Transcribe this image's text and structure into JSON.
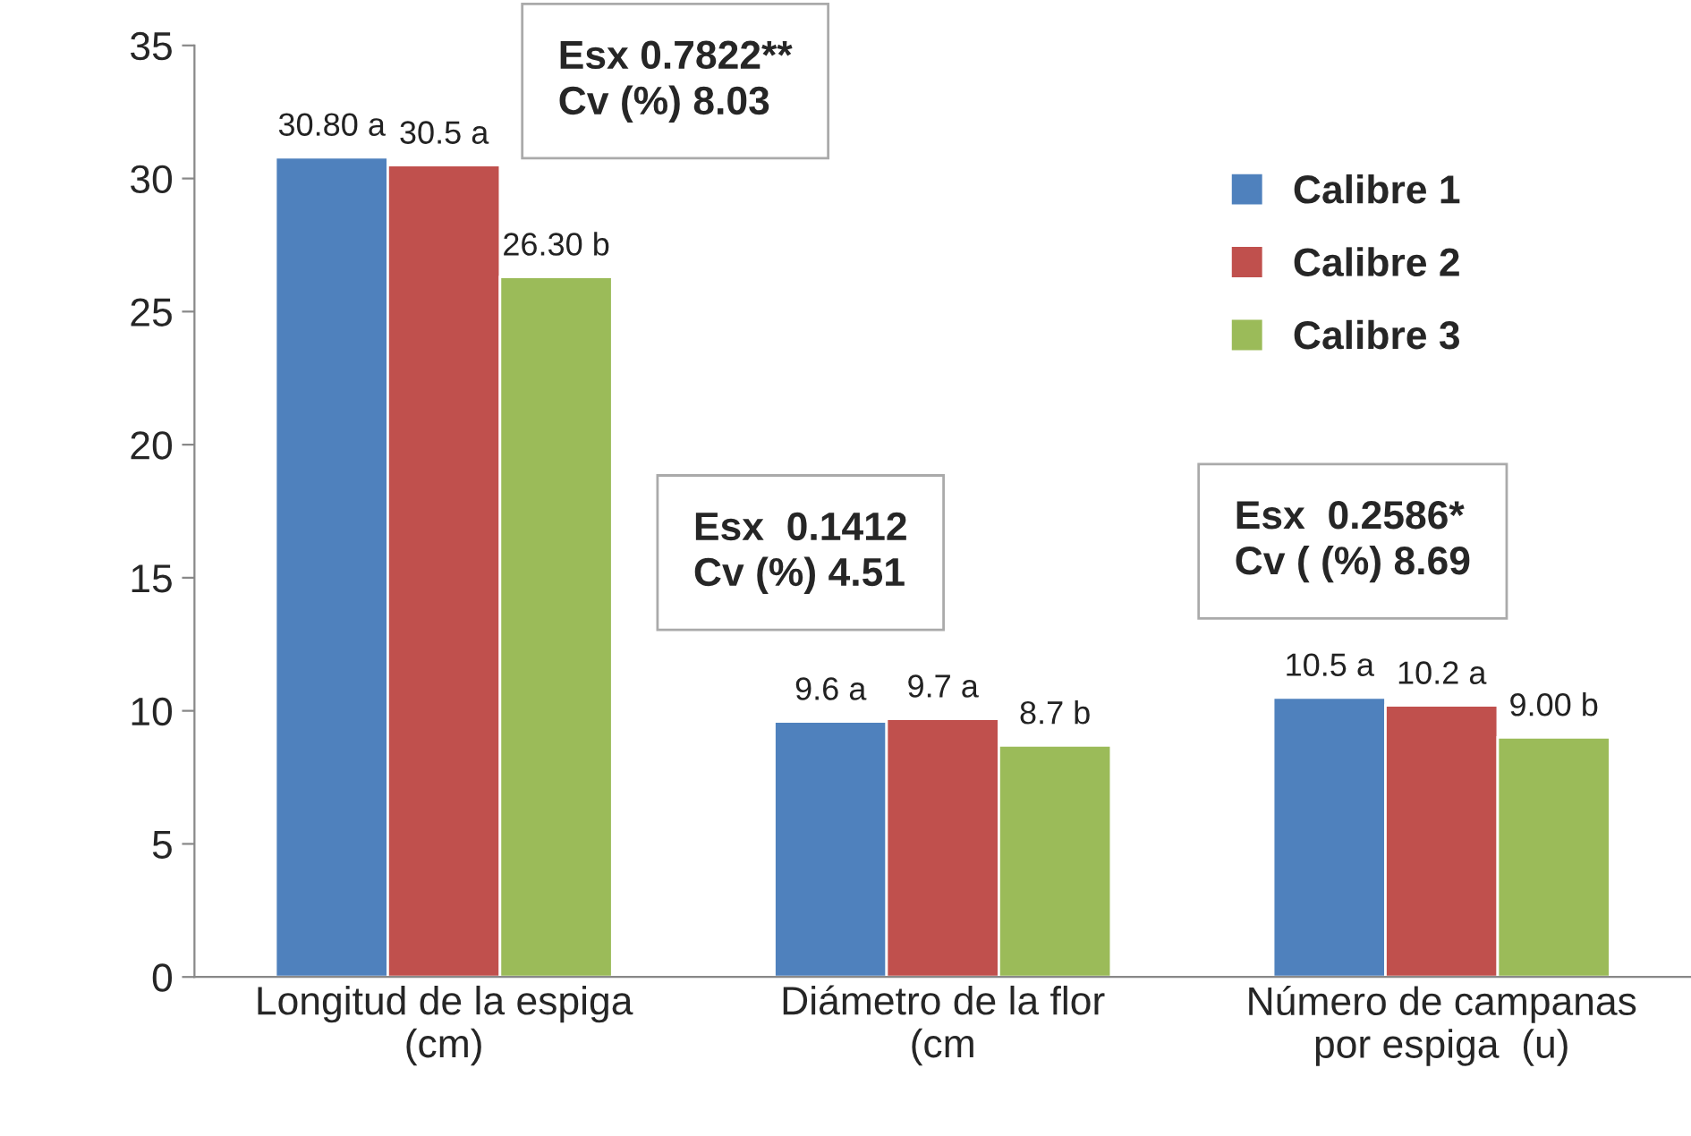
{
  "chart_data": {
    "type": "bar",
    "categories": [
      "Longitud de la espiga\n(cm)",
      "Diámetro de la flor\n(cm",
      "Número de campanas\npor espiga  (u)"
    ],
    "series": [
      {
        "name": "Calibre 1",
        "color": "#4f81bd",
        "values": [
          30.8,
          9.6,
          10.5
        ],
        "value_labels": [
          "30.80 a",
          "9.6 a",
          "10.5 a"
        ]
      },
      {
        "name": "Calibre 2",
        "color": "#c0504d",
        "values": [
          30.5,
          9.7,
          10.2
        ],
        "value_labels": [
          "30.5 a",
          "9.7 a",
          "10.2 a"
        ]
      },
      {
        "name": "Calibre 3",
        "color": "#9bbb59",
        "values": [
          26.3,
          8.7,
          9.0
        ],
        "value_labels": [
          "26.30 b",
          "8.7 b",
          "9.00 b"
        ]
      }
    ],
    "annotations": [
      "Esx 0.7822**\nCv (%) 8.03",
      "Esx  0.1412\nCv (%) 4.51",
      "Esx  0.2586*\nCv ( (%) 8.69"
    ],
    "ylim": [
      0,
      35
    ],
    "yticks": [
      0,
      5,
      10,
      15,
      20,
      25,
      30,
      35
    ],
    "grid": false,
    "legend": "top right"
  }
}
